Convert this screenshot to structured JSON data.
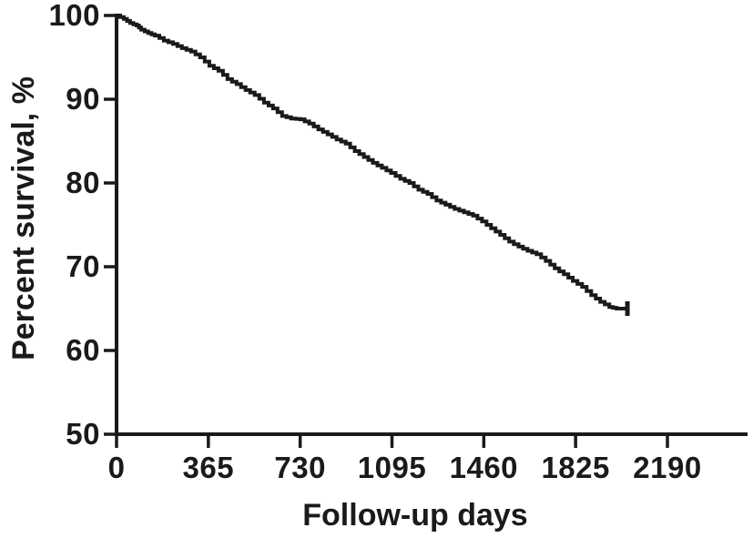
{
  "figure": {
    "background_color": "#ffffff",
    "ink_color": "#1a1a1a"
  },
  "chart_data": {
    "type": "line",
    "subtype": "kaplan-meier-step-curve",
    "title": "",
    "xlabel": "Follow-up days",
    "ylabel": "Percent survival, %",
    "xlim": [
      0,
      2190
    ],
    "ylim": [
      50,
      100
    ],
    "x_ticks": [
      0,
      365,
      730,
      1095,
      1460,
      1825,
      2190
    ],
    "x_tick_labels": [
      "0",
      "365",
      "730",
      "1095",
      "1460",
      "1825",
      "2190"
    ],
    "y_ticks": [
      100,
      90,
      80,
      70,
      60,
      50
    ],
    "y_tick_labels": [
      "100",
      "90",
      "80",
      "70",
      "60",
      "50"
    ],
    "grid": false,
    "legend": "none",
    "series": [
      {
        "name": "survival-curve",
        "x": [
          0,
          29,
          54,
          80,
          98,
          126,
          152,
          188,
          224,
          260,
          296,
          332,
          369,
          405,
          441,
          477,
          513,
          549,
          586,
          622,
          658,
          694,
          730,
          766,
          802,
          839,
          875,
          911,
          947,
          983,
          1019,
          1055,
          1091,
          1128,
          1164,
          1200,
          1236,
          1272,
          1308,
          1344,
          1381,
          1417,
          1453,
          1489,
          1525,
          1561,
          1598,
          1634,
          1670,
          1706,
          1742,
          1778,
          1814,
          1851,
          1887,
          1923,
          1959,
          1988,
          2031
        ],
        "y": [
          100,
          99.6,
          99.1,
          98.8,
          98.3,
          97.9,
          97.6,
          97.0,
          96.6,
          96.1,
          95.7,
          95.0,
          94.0,
          93.4,
          92.4,
          91.8,
          91.1,
          90.5,
          89.6,
          88.9,
          88.0,
          87.7,
          87.6,
          87.1,
          86.4,
          85.8,
          85.2,
          84.7,
          83.8,
          83.1,
          82.4,
          81.8,
          81.2,
          80.5,
          80.0,
          79.2,
          78.7,
          77.9,
          77.4,
          76.9,
          76.5,
          76.1,
          75.4,
          74.6,
          73.8,
          73.0,
          72.4,
          71.9,
          71.5,
          70.7,
          69.8,
          69.1,
          68.3,
          67.6,
          66.6,
          65.8,
          65.2,
          65.0,
          65.0
        ]
      }
    ],
    "censor_marks": [
      {
        "x": 2031,
        "y": 65.0
      }
    ]
  }
}
